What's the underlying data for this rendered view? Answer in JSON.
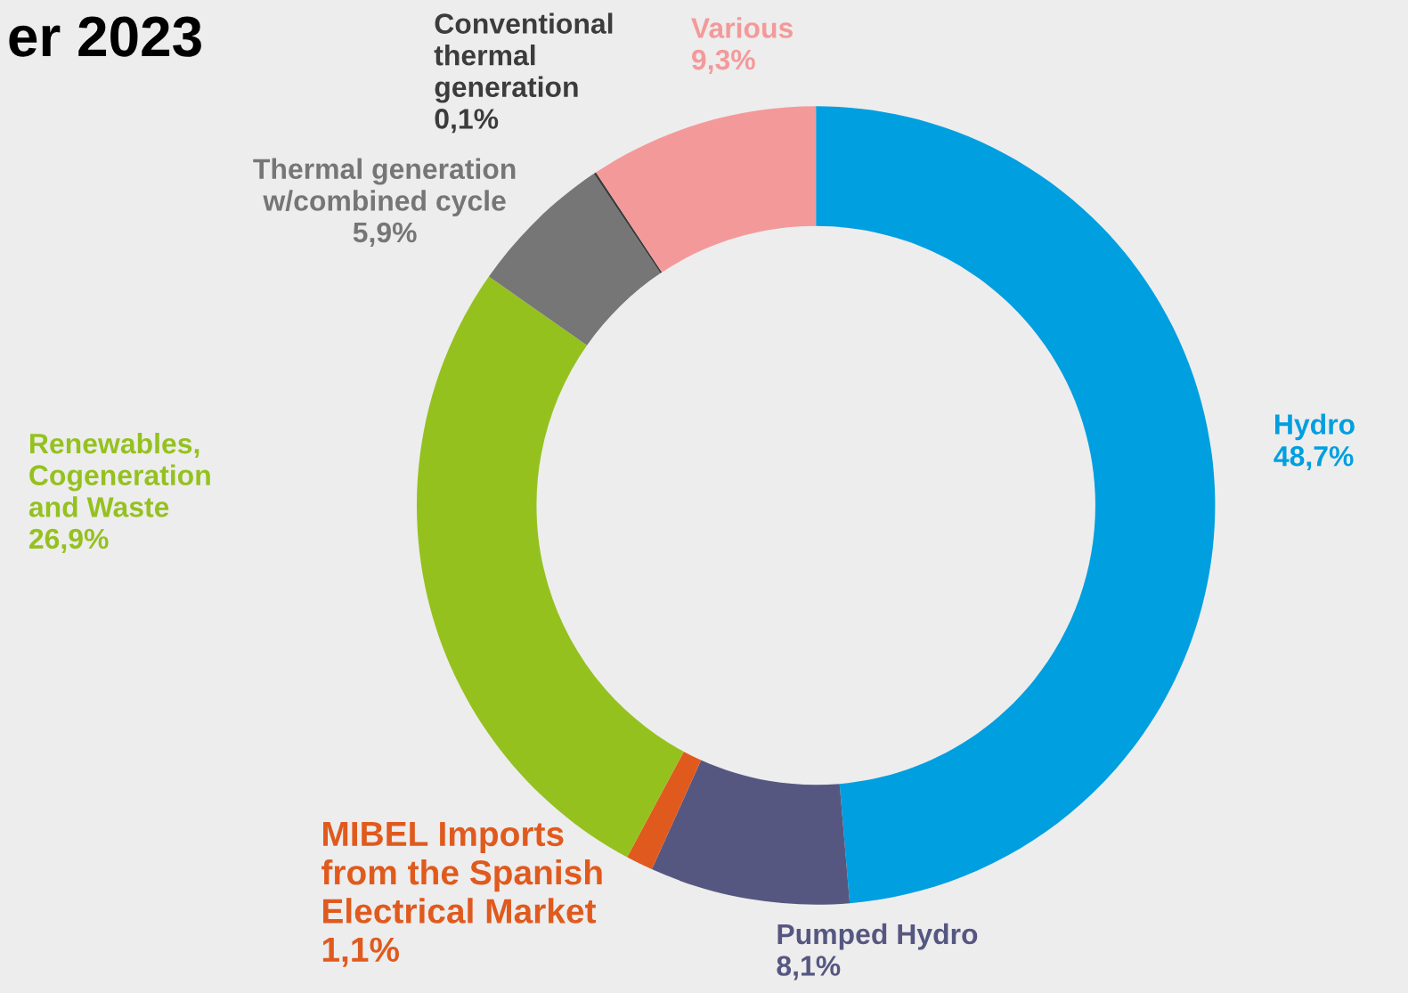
{
  "chart_data": {
    "type": "donut",
    "title": "er 2023",
    "categories": [
      "Hydro",
      "Pumped Hydro",
      "MIBEL Imports\nfrom the Spanish\nElectrical Market",
      "Renewables,\nCogeneration\nand Waste",
      "Thermal generation\nw/combined cycle",
      "Conventional\nthermal\ngeneration",
      "Various"
    ],
    "values": [
      48.7,
      8.1,
      1.1,
      26.9,
      5.9,
      0.1,
      9.3
    ],
    "value_labels": [
      "48,7%",
      "8,1%",
      "1,1%",
      "26,9%",
      "5,9%",
      "0,1%",
      "9,3%"
    ],
    "colors": [
      "#009fe0",
      "#565781",
      "#e05a1e",
      "#95c11f",
      "#767676",
      "#3c3c3c",
      "#f4999a"
    ],
    "legend": false
  }
}
